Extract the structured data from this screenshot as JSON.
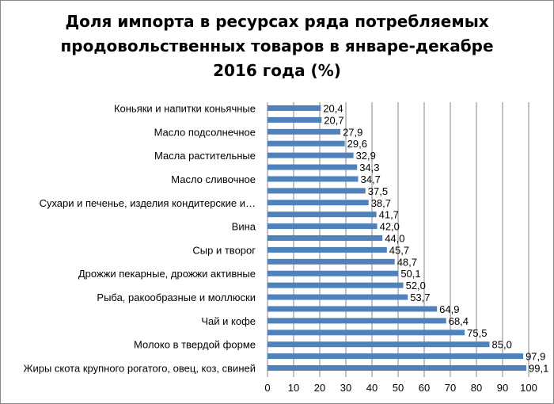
{
  "chart_data": {
    "type": "bar",
    "orientation": "horizontal",
    "title_lines": [
      "Доля импорта в ресурсах ряда потребляемых",
      "продовольственных товаров в январе-декабре",
      "2016 года (%)"
    ],
    "categories": [
      "Коньяки и напитки коньячные",
      "",
      "Масло подсолнечное",
      "",
      "Масла растительные",
      "",
      "Масло сливочное",
      "",
      "Сухари и печенье, изделия кондитерские и…",
      "",
      "Вина",
      "",
      "Сыр и творог",
      "",
      "Дрожжи пекарные, дрожжи активные",
      "",
      "Рыба, ракообразные и моллюски",
      "",
      "Чай и кофе",
      "",
      "Молоко в твердой форме",
      "",
      "Жиры скота крупного рогатого, овец, коз, свиней"
    ],
    "values": [
      20.4,
      20.7,
      27.9,
      29.6,
      32.9,
      34.3,
      34.7,
      37.5,
      38.7,
      41.7,
      42.0,
      44.0,
      45.7,
      48.7,
      50.1,
      52.0,
      53.7,
      64.9,
      68.4,
      75.5,
      85.0,
      97.9,
      99.1
    ],
    "value_labels": [
      "20,4",
      "20,7",
      "27,9",
      "29,6",
      "32,9",
      "34,3",
      "34,7",
      "37,5",
      "38,7",
      "41,7",
      "42,0",
      "44,0",
      "45,7",
      "48,7",
      "50,1",
      "52,0",
      "53,7",
      "64,9",
      "68,4",
      "75,5",
      "85,0",
      "97,9",
      "99,1"
    ],
    "xlim": [
      0,
      100
    ],
    "xticks": [
      "0",
      "10",
      "20",
      "30",
      "40",
      "50",
      "60",
      "70",
      "80",
      "90",
      "100"
    ],
    "grid": "vertical",
    "bar_color": "#4F81BD",
    "grid_color": "#868686"
  }
}
